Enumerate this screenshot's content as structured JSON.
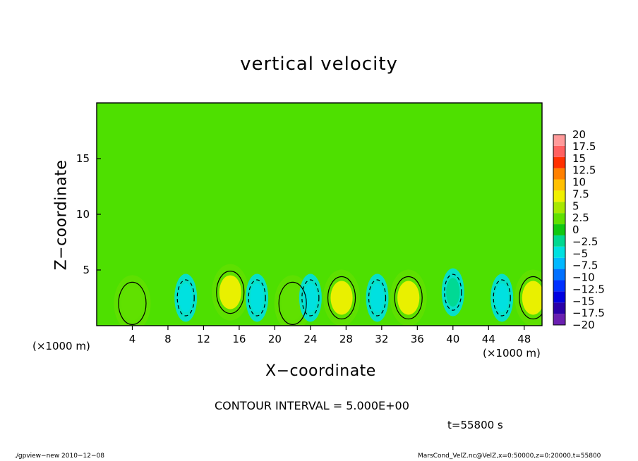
{
  "chart_data": {
    "type": "heatmap",
    "title": "vertical velocity",
    "xlabel": "X−coordinate",
    "ylabel": "Z−coordinate",
    "x_unit": "(×1000 m)",
    "y_unit": "(×1000 m)",
    "xlim": [
      0,
      50
    ],
    "ylim": [
      0,
      20
    ],
    "x_ticks": [
      4,
      8,
      12,
      16,
      20,
      24,
      28,
      32,
      36,
      40,
      44,
      48
    ],
    "x_tick_labels": [
      "4",
      "8",
      "12",
      "16",
      "20",
      "24",
      "28",
      "32",
      "36",
      "40",
      "44",
      "48"
    ],
    "y_ticks": [
      5,
      10,
      15
    ],
    "y_tick_labels": [
      "5",
      "10",
      "15"
    ],
    "contour_interval_text": "CONTOUR INTERVAL = 5.000E+00",
    "time_text": "t=55800 s",
    "colorbar": {
      "levels": [
        -20,
        -17.5,
        -15,
        -12.5,
        -10,
        -7.5,
        -5,
        -2.5,
        0,
        2.5,
        5,
        7.5,
        10,
        12.5,
        15,
        17.5,
        20
      ],
      "labels": [
        "−20",
        "−17.5",
        "−15",
        "−12.5",
        "−10",
        "−7.5",
        "−5",
        "−2.5",
        "0",
        "2.5",
        "5",
        "7.5",
        "10",
        "12.5",
        "15",
        "17.5",
        "20"
      ],
      "colors": [
        "#6a1fb0",
        "#2a00a8",
        "#0000e0",
        "#0030ff",
        "#0070ff",
        "#00b8ff",
        "#00e0e0",
        "#00d890",
        "#10c810",
        "#60e000",
        "#a8e800",
        "#f0f000",
        "#ffc000",
        "#ff8000",
        "#ff3000",
        "#ff6060",
        "#ff9a9a"
      ]
    },
    "features": [
      {
        "kind": "updraft",
        "x": 15,
        "z": 3,
        "peak": 7.5
      },
      {
        "kind": "updraft",
        "x": 27.5,
        "z": 2.5,
        "peak": 7.5
      },
      {
        "kind": "updraft",
        "x": 35,
        "z": 2.5,
        "peak": 7.5
      },
      {
        "kind": "updraft",
        "x": 49,
        "z": 2.5,
        "peak": 7.5
      },
      {
        "kind": "updraft",
        "x": 22,
        "z": 2,
        "peak": 2.5
      },
      {
        "kind": "updraft",
        "x": 4,
        "z": 2,
        "peak": 2.5
      },
      {
        "kind": "downdraft",
        "x": 10,
        "z": 2.5,
        "peak": -5
      },
      {
        "kind": "downdraft",
        "x": 18,
        "z": 2.5,
        "peak": -5
      },
      {
        "kind": "downdraft",
        "x": 24,
        "z": 2.5,
        "peak": -5
      },
      {
        "kind": "downdraft",
        "x": 31.5,
        "z": 2.5,
        "peak": -5
      },
      {
        "kind": "downdraft",
        "x": 45.5,
        "z": 2.5,
        "peak": -5
      },
      {
        "kind": "downdraft",
        "x": 40,
        "z": 3,
        "peak": -2.5
      }
    ]
  },
  "footer": {
    "left": "./gpview−new   2010−12−08",
    "right": "MarsCond_VelZ.nc@VelZ,x=0:50000,z=0:20000,t=55800"
  }
}
